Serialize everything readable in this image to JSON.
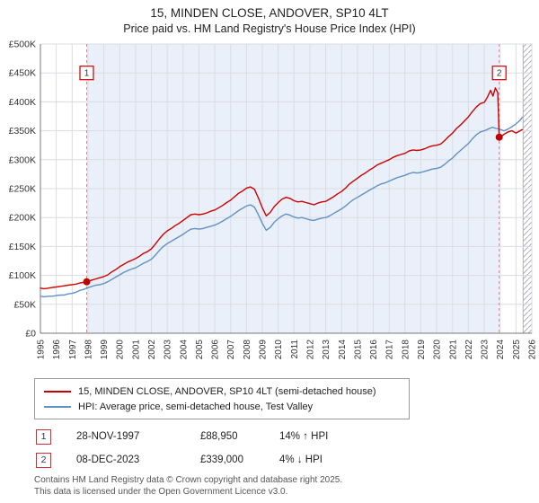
{
  "chart_data": {
    "type": "line",
    "title": "15, MINDEN CLOSE, ANDOVER, SP10 4LT",
    "subtitle": "Price paid vs. HM Land Registry's House Price Index (HPI)",
    "x_range": [
      1995,
      2026
    ],
    "y_range_k": [
      0,
      500
    ],
    "x_ticks": [
      1995,
      1996,
      1997,
      1998,
      1999,
      2000,
      2001,
      2002,
      2003,
      2004,
      2005,
      2006,
      2007,
      2008,
      2009,
      2010,
      2011,
      2012,
      2013,
      2014,
      2015,
      2016,
      2017,
      2018,
      2019,
      2020,
      2021,
      2022,
      2023,
      2024,
      2025,
      2026
    ],
    "y_tick_values": [
      0,
      50,
      100,
      150,
      200,
      250,
      300,
      350,
      400,
      450,
      500
    ],
    "y_tick_labels": [
      "£0",
      "£50K",
      "£100K",
      "£150K",
      "£200K",
      "£250K",
      "£300K",
      "£350K",
      "£400K",
      "£450K",
      "£500K"
    ],
    "grid": true,
    "legend_position": "below",
    "shaded_region": [
      1997.92,
      2023.94
    ],
    "future_region": [
      2025.45,
      2026
    ],
    "colors": {
      "red": "#cc0000",
      "blue": "#6191c6",
      "shade": "#eaf0fa",
      "grid": "#d9dce3",
      "dashed": "#e08484",
      "hatch": "#b0b0b8",
      "axis": "#777777"
    },
    "markers": [
      {
        "label": "1",
        "x": 1997.92,
        "value_k": 88.95
      },
      {
        "label": "2",
        "x": 2023.94,
        "value_k": 339
      }
    ],
    "series": [
      {
        "name": "15, MINDEN CLOSE, ANDOVER, SP10 4LT (semi-detached house)",
        "color": "#cc0000",
        "points": [
          [
            1995,
            78
          ],
          [
            1995.25,
            77
          ],
          [
            1995.5,
            78
          ],
          [
            1995.75,
            79
          ],
          [
            1996,
            80
          ],
          [
            1996.25,
            81
          ],
          [
            1996.5,
            82
          ],
          [
            1996.75,
            83
          ],
          [
            1997,
            84
          ],
          [
            1997.25,
            85
          ],
          [
            1997.5,
            87
          ],
          [
            1997.75,
            88
          ],
          [
            1997.92,
            89
          ],
          [
            1998.25,
            92
          ],
          [
            1998.5,
            94
          ],
          [
            1998.75,
            96
          ],
          [
            1999,
            98
          ],
          [
            1999.25,
            101
          ],
          [
            1999.5,
            106
          ],
          [
            1999.75,
            110
          ],
          [
            2000,
            115
          ],
          [
            2000.25,
            119
          ],
          [
            2000.5,
            123
          ],
          [
            2000.75,
            126
          ],
          [
            2001,
            129
          ],
          [
            2001.25,
            133
          ],
          [
            2001.5,
            138
          ],
          [
            2001.75,
            141
          ],
          [
            2002,
            146
          ],
          [
            2002.25,
            154
          ],
          [
            2002.5,
            163
          ],
          [
            2002.75,
            171
          ],
          [
            2003,
            177
          ],
          [
            2003.25,
            181
          ],
          [
            2003.5,
            186
          ],
          [
            2003.75,
            190
          ],
          [
            2004,
            195
          ],
          [
            2004.25,
            200
          ],
          [
            2004.5,
            205
          ],
          [
            2004.75,
            206
          ],
          [
            2005,
            205
          ],
          [
            2005.25,
            206
          ],
          [
            2005.5,
            208
          ],
          [
            2005.75,
            211
          ],
          [
            2006,
            213
          ],
          [
            2006.25,
            217
          ],
          [
            2006.5,
            221
          ],
          [
            2006.75,
            226
          ],
          [
            2007,
            230
          ],
          [
            2007.25,
            236
          ],
          [
            2007.5,
            242
          ],
          [
            2007.75,
            246
          ],
          [
            2008,
            251
          ],
          [
            2008.25,
            253
          ],
          [
            2008.5,
            249
          ],
          [
            2008.75,
            234
          ],
          [
            2009,
            217
          ],
          [
            2009.25,
            203
          ],
          [
            2009.5,
            209
          ],
          [
            2009.75,
            219
          ],
          [
            2010,
            226
          ],
          [
            2010.25,
            232
          ],
          [
            2010.5,
            235
          ],
          [
            2010.75,
            233
          ],
          [
            2011,
            229
          ],
          [
            2011.25,
            227
          ],
          [
            2011.5,
            228
          ],
          [
            2011.75,
            226
          ],
          [
            2012,
            224
          ],
          [
            2012.25,
            222
          ],
          [
            2012.5,
            225
          ],
          [
            2012.75,
            227
          ],
          [
            2013,
            228
          ],
          [
            2013.25,
            232
          ],
          [
            2013.5,
            236
          ],
          [
            2013.75,
            241
          ],
          [
            2014,
            245
          ],
          [
            2014.25,
            251
          ],
          [
            2014.5,
            258
          ],
          [
            2014.75,
            263
          ],
          [
            2015,
            268
          ],
          [
            2015.25,
            273
          ],
          [
            2015.5,
            277
          ],
          [
            2015.75,
            282
          ],
          [
            2016,
            286
          ],
          [
            2016.25,
            291
          ],
          [
            2016.5,
            294
          ],
          [
            2016.75,
            297
          ],
          [
            2017,
            300
          ],
          [
            2017.25,
            304
          ],
          [
            2017.5,
            307
          ],
          [
            2017.75,
            309
          ],
          [
            2018,
            311
          ],
          [
            2018.25,
            315
          ],
          [
            2018.5,
            317
          ],
          [
            2018.75,
            316
          ],
          [
            2019,
            317
          ],
          [
            2019.25,
            319
          ],
          [
            2019.5,
            322
          ],
          [
            2019.75,
            324
          ],
          [
            2020,
            325
          ],
          [
            2020.25,
            327
          ],
          [
            2020.5,
            333
          ],
          [
            2020.75,
            340
          ],
          [
            2021,
            346
          ],
          [
            2021.25,
            354
          ],
          [
            2021.5,
            360
          ],
          [
            2021.75,
            367
          ],
          [
            2022,
            374
          ],
          [
            2022.25,
            383
          ],
          [
            2022.5,
            391
          ],
          [
            2022.75,
            397
          ],
          [
            2023,
            399
          ],
          [
            2023.2,
            408
          ],
          [
            2023.4,
            420
          ],
          [
            2023.55,
            410
          ],
          [
            2023.7,
            424
          ],
          [
            2023.85,
            416
          ],
          [
            2023.94,
            339
          ],
          [
            2024.1,
            341
          ],
          [
            2024.25,
            344
          ],
          [
            2024.5,
            348
          ],
          [
            2024.75,
            350
          ],
          [
            2025,
            346
          ],
          [
            2025.25,
            350
          ],
          [
            2025.4,
            352
          ]
        ]
      },
      {
        "name": "HPI: Average price, semi-detached house, Test Valley",
        "color": "#6191c6",
        "points": [
          [
            1995,
            64
          ],
          [
            1995.25,
            63
          ],
          [
            1995.5,
            64
          ],
          [
            1995.75,
            64
          ],
          [
            1996,
            65
          ],
          [
            1996.25,
            66
          ],
          [
            1996.5,
            66
          ],
          [
            1996.75,
            68
          ],
          [
            1997,
            69
          ],
          [
            1997.25,
            71
          ],
          [
            1997.5,
            74
          ],
          [
            1997.75,
            76
          ],
          [
            1997.92,
            78
          ],
          [
            1998.25,
            81
          ],
          [
            1998.5,
            83
          ],
          [
            1998.75,
            84
          ],
          [
            1999,
            86
          ],
          [
            1999.25,
            89
          ],
          [
            1999.5,
            93
          ],
          [
            1999.75,
            97
          ],
          [
            2000,
            101
          ],
          [
            2000.25,
            105
          ],
          [
            2000.5,
            108
          ],
          [
            2000.75,
            111
          ],
          [
            2001,
            113
          ],
          [
            2001.25,
            117
          ],
          [
            2001.5,
            121
          ],
          [
            2001.75,
            124
          ],
          [
            2002,
            128
          ],
          [
            2002.25,
            135
          ],
          [
            2002.5,
            143
          ],
          [
            2002.75,
            150
          ],
          [
            2003,
            155
          ],
          [
            2003.25,
            159
          ],
          [
            2003.5,
            163
          ],
          [
            2003.75,
            167
          ],
          [
            2004,
            171
          ],
          [
            2004.25,
            176
          ],
          [
            2004.5,
            180
          ],
          [
            2004.75,
            181
          ],
          [
            2005,
            180
          ],
          [
            2005.25,
            181
          ],
          [
            2005.5,
            183
          ],
          [
            2005.75,
            185
          ],
          [
            2006,
            187
          ],
          [
            2006.25,
            190
          ],
          [
            2006.5,
            194
          ],
          [
            2006.75,
            198
          ],
          [
            2007,
            202
          ],
          [
            2007.25,
            207
          ],
          [
            2007.5,
            212
          ],
          [
            2007.75,
            216
          ],
          [
            2008,
            220
          ],
          [
            2008.25,
            222
          ],
          [
            2008.5,
            218
          ],
          [
            2008.75,
            205
          ],
          [
            2009,
            190
          ],
          [
            2009.25,
            178
          ],
          [
            2009.5,
            183
          ],
          [
            2009.75,
            192
          ],
          [
            2010,
            198
          ],
          [
            2010.25,
            203
          ],
          [
            2010.5,
            206
          ],
          [
            2010.75,
            204
          ],
          [
            2011,
            201
          ],
          [
            2011.25,
            199
          ],
          [
            2011.5,
            200
          ],
          [
            2011.75,
            198
          ],
          [
            2012,
            196
          ],
          [
            2012.25,
            195
          ],
          [
            2012.5,
            197
          ],
          [
            2012.75,
            199
          ],
          [
            2013,
            200
          ],
          [
            2013.25,
            203
          ],
          [
            2013.5,
            207
          ],
          [
            2013.75,
            211
          ],
          [
            2014,
            215
          ],
          [
            2014.25,
            220
          ],
          [
            2014.5,
            226
          ],
          [
            2014.75,
            231
          ],
          [
            2015,
            235
          ],
          [
            2015.25,
            239
          ],
          [
            2015.5,
            243
          ],
          [
            2015.75,
            247
          ],
          [
            2016,
            251
          ],
          [
            2016.25,
            255
          ],
          [
            2016.5,
            258
          ],
          [
            2016.75,
            260
          ],
          [
            2017,
            263
          ],
          [
            2017.25,
            266
          ],
          [
            2017.5,
            269
          ],
          [
            2017.75,
            271
          ],
          [
            2018,
            273
          ],
          [
            2018.25,
            276
          ],
          [
            2018.5,
            278
          ],
          [
            2018.75,
            277
          ],
          [
            2019,
            278
          ],
          [
            2019.25,
            280
          ],
          [
            2019.5,
            282
          ],
          [
            2019.75,
            284
          ],
          [
            2020,
            285
          ],
          [
            2020.25,
            287
          ],
          [
            2020.5,
            292
          ],
          [
            2020.75,
            298
          ],
          [
            2021,
            303
          ],
          [
            2021.25,
            310
          ],
          [
            2021.5,
            316
          ],
          [
            2021.75,
            322
          ],
          [
            2022,
            328
          ],
          [
            2022.25,
            336
          ],
          [
            2022.5,
            343
          ],
          [
            2022.75,
            348
          ],
          [
            2023,
            350
          ],
          [
            2023.25,
            353
          ],
          [
            2023.5,
            356
          ],
          [
            2023.75,
            354
          ],
          [
            2023.94,
            353
          ],
          [
            2024.25,
            350
          ],
          [
            2024.5,
            353
          ],
          [
            2024.75,
            357
          ],
          [
            2025,
            362
          ],
          [
            2025.25,
            368
          ],
          [
            2025.4,
            373
          ]
        ]
      }
    ]
  },
  "transactions": [
    {
      "num": "1",
      "date": "28-NOV-1997",
      "price": "£88,950",
      "hpi": "14% ↑ HPI"
    },
    {
      "num": "2",
      "date": "08-DEC-2023",
      "price": "£339,000",
      "hpi": "4% ↓ HPI"
    }
  ],
  "footer_lines": [
    "Contains HM Land Registry data © Crown copyright and database right 2025.",
    "This data is licensed under the Open Government Licence v3.0."
  ]
}
